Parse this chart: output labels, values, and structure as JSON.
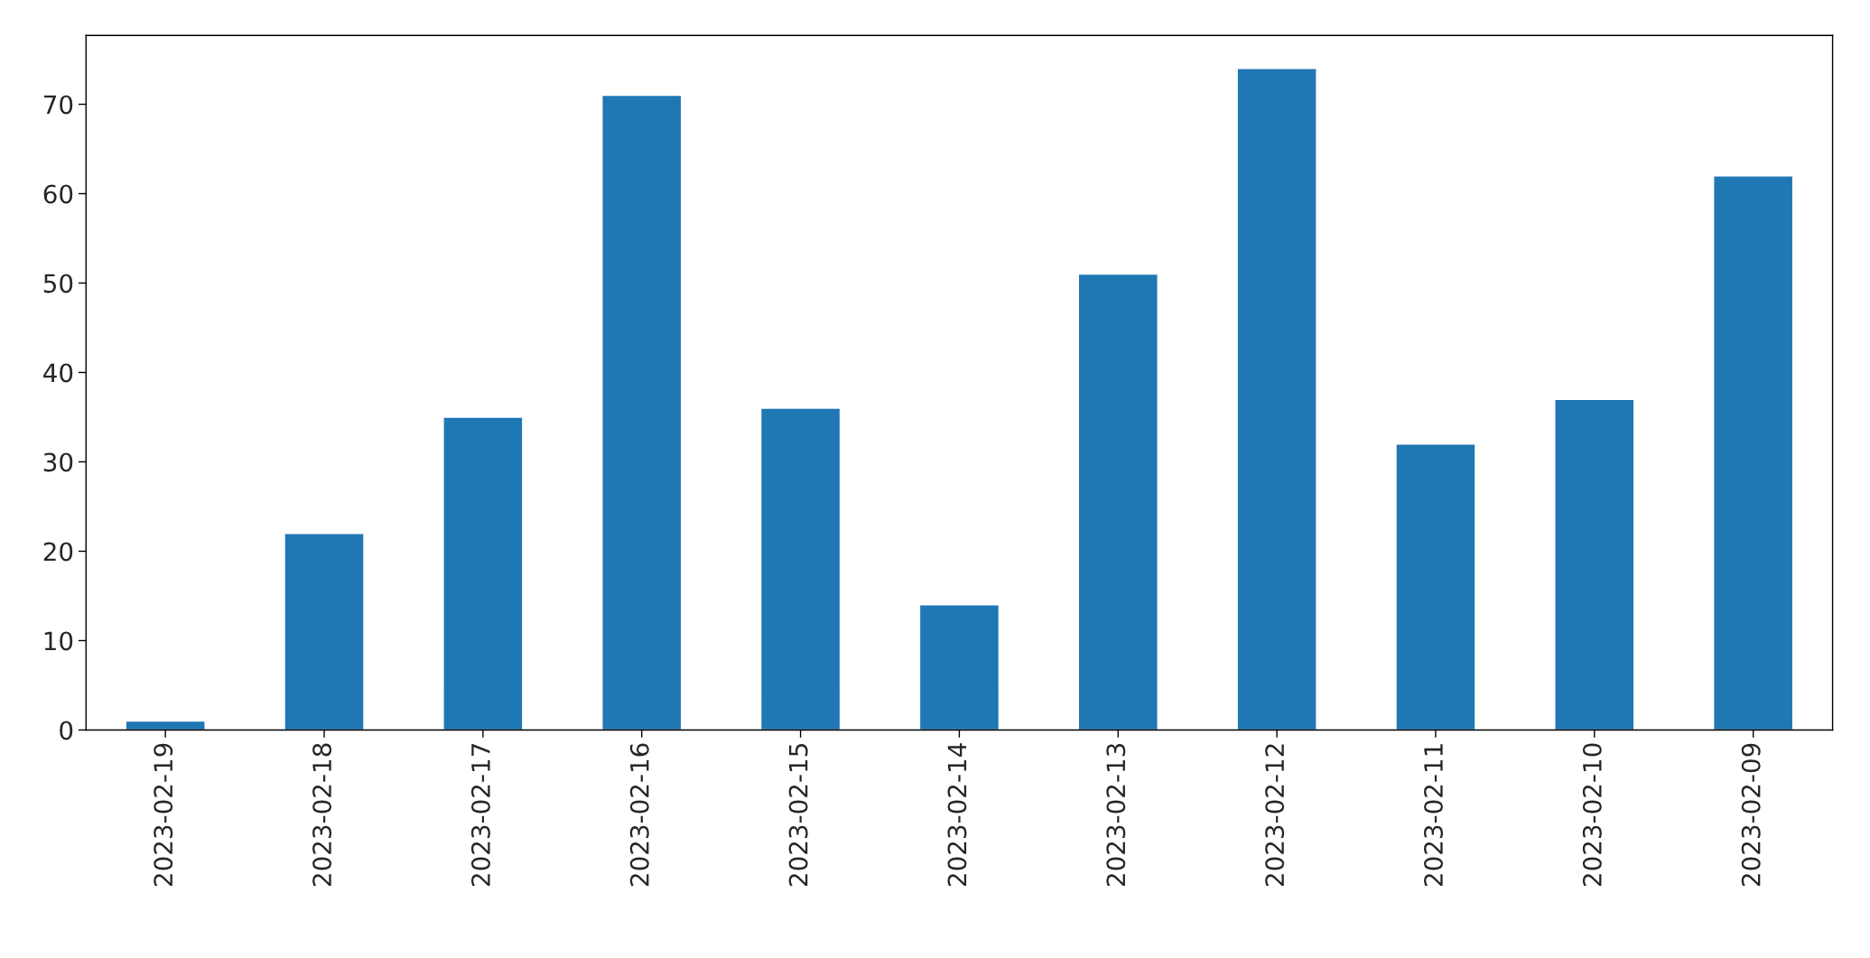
{
  "chart_data": {
    "type": "bar",
    "categories": [
      "2023-02-19",
      "2023-02-18",
      "2023-02-17",
      "2023-02-16",
      "2023-02-15",
      "2023-02-14",
      "2023-02-13",
      "2023-02-12",
      "2023-02-11",
      "2023-02-10",
      "2023-02-09"
    ],
    "values": [
      1,
      22,
      35,
      71,
      36,
      14,
      51,
      74,
      32,
      37,
      62
    ],
    "color": "#1f77b4",
    "ylim": [
      0,
      77.7
    ],
    "yticks": [
      0,
      10,
      20,
      30,
      40,
      50,
      60,
      70
    ],
    "grid": false,
    "legend": false
  }
}
